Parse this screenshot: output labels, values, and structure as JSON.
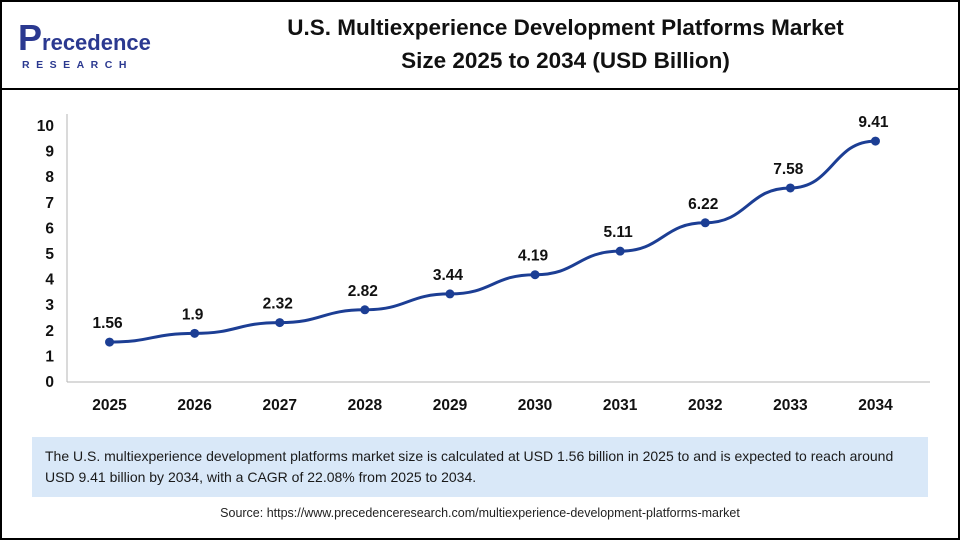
{
  "logo": {
    "name": "Precedence",
    "subtitle": "RESEARCH"
  },
  "header": {
    "title_line1": "U.S. Multiexperience Development Platforms Market",
    "title_line2": "Size 2025 to 2034 (USD Billion)"
  },
  "chart_data": {
    "type": "line",
    "title": "U.S. Multiexperience Development Platforms Market Size 2025 to 2034 (USD Billion)",
    "categories": [
      "2025",
      "2026",
      "2027",
      "2028",
      "2029",
      "2030",
      "2031",
      "2032",
      "2033",
      "2034"
    ],
    "values": [
      1.56,
      1.9,
      2.32,
      2.82,
      3.44,
      4.19,
      5.11,
      6.22,
      7.58,
      9.41
    ],
    "xlabel": "",
    "ylabel": "",
    "ylim": [
      0,
      10
    ],
    "y_ticks": [
      0,
      1,
      2,
      3,
      4,
      5,
      6,
      7,
      8,
      9,
      10
    ],
    "grid": false,
    "legend": "none",
    "line_color": "#1c3e94",
    "label_color": "#111111",
    "axis_color": "#b5b5b5"
  },
  "summary": {
    "text": "The U.S. multiexperience development platforms market size is calculated at USD 1.56 billion in 2025 to and is expected to reach around USD 9.41 billion by 2034, with a CAGR of 22.08% from 2025 to 2034."
  },
  "source": {
    "text": "Source: https://www.precedenceresearch.com/multiexperience-development-platforms-market"
  }
}
